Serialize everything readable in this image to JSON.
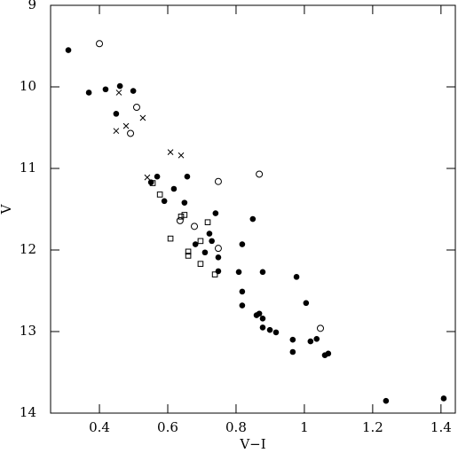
{
  "chart_data": {
    "type": "scatter",
    "xlabel": "V−I",
    "ylabel": "V",
    "xlim": [
      0.257,
      1.442
    ],
    "ylim": [
      9,
      14
    ],
    "invert_y": true,
    "xticks": [
      0.4,
      0.6,
      0.8,
      1,
      1.2,
      1.4
    ],
    "yticks": [
      9,
      10,
      11,
      12,
      13,
      14
    ],
    "color": "#000000",
    "series": [
      {
        "marker": "filled-circle",
        "x": [
          0.309,
          0.369,
          0.418,
          0.46,
          0.499,
          0.449,
          0.569,
          0.657,
          0.618,
          0.551,
          0.59,
          0.649,
          0.74,
          0.849,
          0.722,
          0.729,
          0.681,
          0.709,
          0.748,
          0.818,
          0.808,
          0.878,
          0.977,
          0.748,
          0.818,
          0.818,
          1.005,
          0.86,
          0.868,
          0.878,
          0.878,
          0.899,
          0.917,
          0.966,
          1.018,
          1.036,
          1.06,
          1.07,
          0.966,
          1.239,
          1.408
        ],
        "values": [
          9.55,
          10.07,
          10.03,
          9.99,
          10.05,
          10.33,
          11.1,
          11.1,
          11.25,
          11.17,
          11.4,
          11.42,
          11.55,
          11.62,
          11.8,
          11.89,
          11.93,
          12.03,
          12.09,
          11.93,
          12.27,
          12.27,
          12.33,
          12.26,
          12.51,
          12.68,
          12.65,
          12.8,
          12.78,
          12.84,
          12.95,
          12.98,
          13.01,
          13.1,
          13.12,
          13.09,
          13.29,
          13.27,
          13.25,
          13.85,
          13.82
        ]
      },
      {
        "marker": "open-circle",
        "x": [
          0.4,
          0.509,
          0.491,
          0.868,
          0.748,
          0.636,
          0.678,
          0.748,
          1.047
        ],
        "values": [
          9.47,
          10.25,
          10.57,
          11.07,
          11.16,
          11.64,
          11.71,
          11.98,
          12.96
        ]
      },
      {
        "marker": "cross",
        "x": [
          0.457,
          0.527,
          0.478,
          0.449,
          0.608,
          0.639,
          0.54
        ],
        "values": [
          10.07,
          10.38,
          10.48,
          10.54,
          10.8,
          10.84,
          11.11
        ]
      },
      {
        "marker": "open-square",
        "x": [
          0.556,
          0.577,
          0.639,
          0.649,
          0.717,
          0.608,
          0.696,
          0.66,
          0.66,
          0.696,
          0.738
        ],
        "values": [
          11.18,
          11.32,
          11.59,
          11.57,
          11.66,
          11.86,
          11.89,
          12.02,
          12.07,
          12.17,
          12.3
        ]
      }
    ]
  }
}
